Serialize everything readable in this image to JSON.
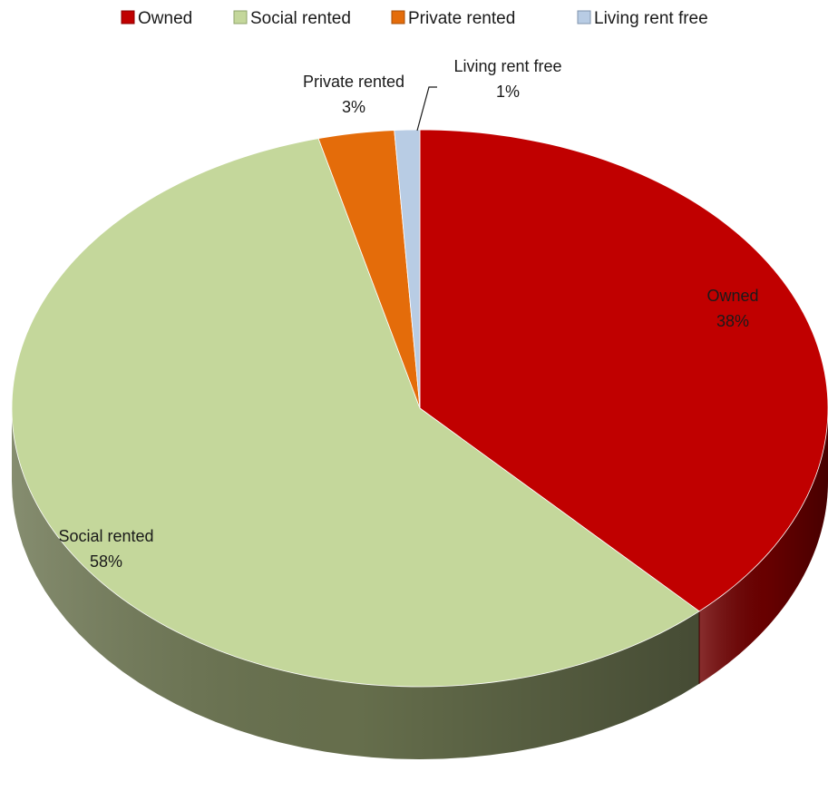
{
  "chart_data": {
    "type": "pie",
    "style": "3d",
    "title": "",
    "legend_position": "top",
    "categories": [
      "Owned",
      "Social rented",
      "Private rented",
      "Living rent free"
    ],
    "values": [
      38,
      58,
      3,
      1
    ],
    "value_labels": [
      "38%",
      "58%",
      "3%",
      "1%"
    ],
    "colors": [
      "#c00000",
      "#c4d79b",
      "#e46c0a",
      "#b8cce4"
    ],
    "side_colors": [
      "#6e0000",
      "#6b7450",
      "#8a4106",
      "#6f7f93"
    ]
  }
}
